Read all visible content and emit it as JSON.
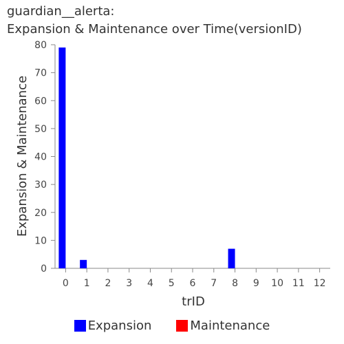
{
  "chart_data": {
    "type": "bar",
    "title": {
      "line1": "guardian__alerta:",
      "line2": "Expansion & Maintenance over Time(versionID)"
    },
    "xlabel": "trID",
    "ylabel": "Expansion & Maintenance",
    "categories": [
      "0",
      "1",
      "2",
      "3",
      "4",
      "5",
      "6",
      "7",
      "8",
      "9",
      "10",
      "11",
      "12"
    ],
    "series": [
      {
        "name": "Expansion",
        "color": "#0000ff",
        "values": [
          79,
          3,
          0,
          0,
          0,
          0,
          0,
          0,
          7,
          0,
          0,
          0,
          0
        ]
      },
      {
        "name": "Maintenance",
        "color": "#ff0000",
        "values": [
          0,
          0,
          0,
          0,
          0,
          0,
          0,
          0,
          0,
          0,
          0,
          0,
          0
        ]
      }
    ],
    "ylim": [
      0,
      80
    ],
    "yticks": [
      0,
      10,
      20,
      30,
      40,
      50,
      60,
      70,
      80
    ],
    "grid": false,
    "legend": "bottom"
  }
}
